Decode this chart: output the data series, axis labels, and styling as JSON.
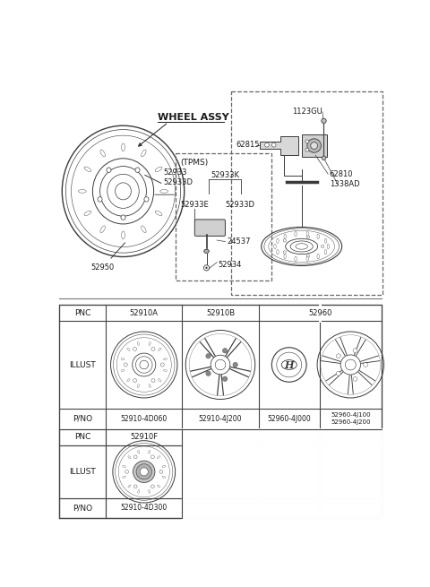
{
  "bg_color": "#ffffff",
  "colors": {
    "line": "#3a3a3a",
    "text": "#1a1a1a",
    "dashed": "#666666",
    "table_line": "#444444",
    "bg": "#ffffff",
    "light_gray": "#e0e0e0",
    "mid_gray": "#b0b0b0"
  },
  "font_sizes": {
    "label": 6.0,
    "header": 7.5,
    "table_header": 6.5,
    "table_cell": 6.0,
    "pno": 5.5,
    "wheel_assy": 8.0
  },
  "top_labels": {
    "wheel_assy": "WHEEL ASSY",
    "tpms": "(TPMS)",
    "52933_52933D": "52933\n52933D",
    "52933K": "52933K",
    "52933E": "52933E",
    "52933D": "52933D",
    "24537": "24537",
    "52934": "52934",
    "52950": "52950",
    "1123GU": "1123GU",
    "62815": "62815",
    "62810": "62810",
    "1338AD": "1338AD"
  },
  "table": {
    "col_labels": [
      "PNC",
      "ILLUST",
      "P/NO"
    ],
    "row1": {
      "pnc": [
        "52910A",
        "52910B",
        "52960"
      ],
      "pno": [
        "52910-4D060",
        "52910-4J200",
        "52960-4J000",
        "52960-4J100\n52960-4J200"
      ]
    },
    "row2": {
      "pnc": [
        "52910F"
      ],
      "pno": [
        "52910-4D300"
      ]
    }
  }
}
